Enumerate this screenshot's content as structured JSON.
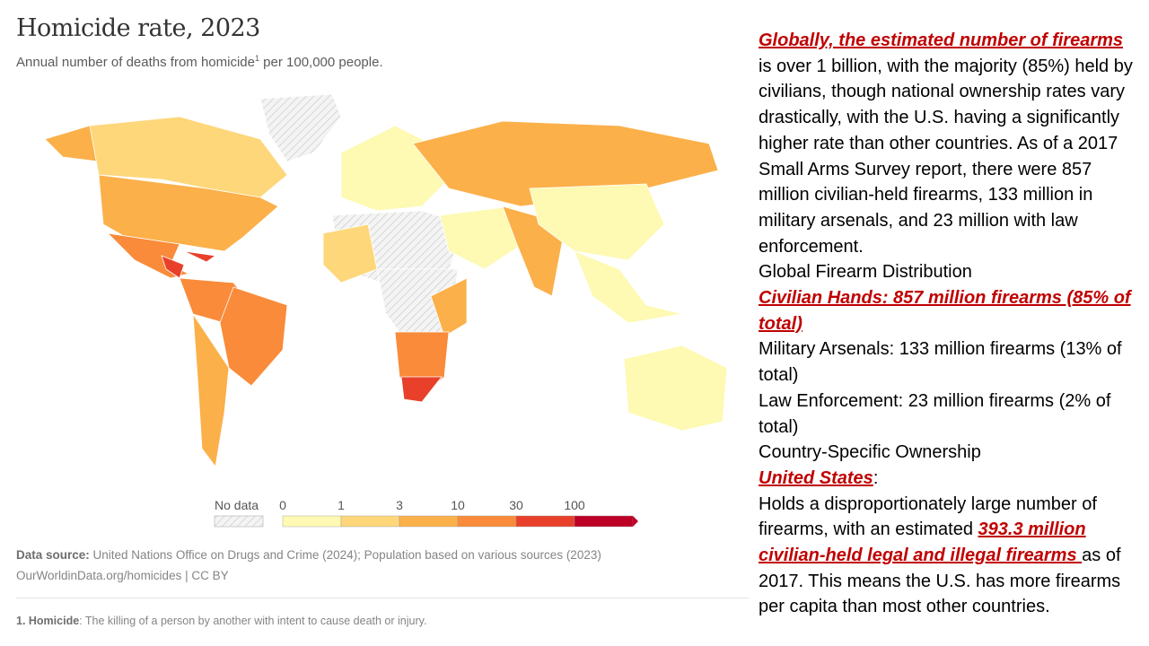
{
  "chart_data": {
    "type": "choropleth",
    "title": "Homicide rate, 2023",
    "subtitle": "Annual number of deaths from homicide",
    "subtitle_sup": "1",
    "subtitle_tail": " per 100,000 people.",
    "legend": {
      "no_data": "No data",
      "ticks": [
        "0",
        "1",
        "3",
        "10",
        "30",
        "100"
      ],
      "colors": [
        "#fef9b3",
        "#fdd77a",
        "#fbb04a",
        "#f98b3a",
        "#e8402a",
        "#bd0026"
      ]
    },
    "source_label": "Data source:",
    "source": " United Nations Office on Drugs and Crime (2024); Population based on various sources (2023)",
    "url": "OurWorldinData.org/homicides | CC BY",
    "footnote_label": "1. Homicide",
    "footnote": ": The killing of a person by another with intent to cause death or injury."
  },
  "text": {
    "p1_hl": "Globally, the estimated number of firearms ",
    "p1": "is over 1 billion, with the majority (85%) held by civilians, though national ownership rates vary drastically, with the U.S. having a significantly higher rate than other countries. As of a 2017 Small Arms Survey report, there were 857 million civilian-held firearms, 133 million in military arsenals, and 23 million with law enforcement.",
    "h1": "Global Firearm Distribution",
    "civ": "Civilian Hands: 857 million firearms (85% of total)",
    "mil": "Military Arsenals: 133 million firearms (13% of total)",
    "law": "Law Enforcement: 23 million firearms (2% of total)",
    "h2": "Country-Specific Ownership",
    "us": "United States",
    "us_colon": ":",
    "p2a": "Holds a disproportionately large number of firearms, with an estimated ",
    "p2_hl": "393.3 million civilian-held legal and illegal firearms ",
    "p2b": "as of 2017. This means the U.S. has more firearms per capita than most other countries."
  }
}
